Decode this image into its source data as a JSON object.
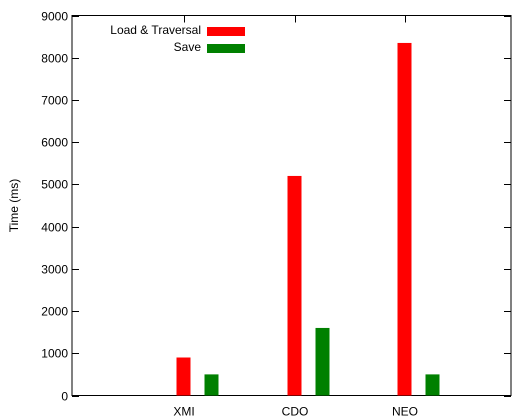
{
  "chart_data": {
    "type": "bar",
    "title": "",
    "xlabel": "",
    "ylabel": "Time (ms)",
    "ylim": [
      0,
      9000
    ],
    "yticks": [
      0,
      1000,
      2000,
      3000,
      4000,
      5000,
      6000,
      7000,
      8000,
      9000
    ],
    "categories": [
      "XMI",
      "CDO",
      "NEO"
    ],
    "grid": false,
    "legend_position": "top-left",
    "series": [
      {
        "name": "Load & Traversal",
        "color": "#ff0000",
        "values": [
          900,
          5200,
          8350
        ]
      },
      {
        "name": "Save",
        "color": "#008000",
        "values": [
          500,
          1600,
          500
        ]
      }
    ]
  }
}
